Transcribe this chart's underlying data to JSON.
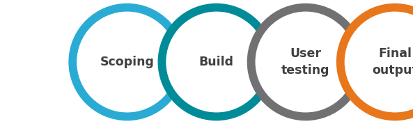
{
  "circles": [
    {
      "label": "Scoping",
      "color": "#29ABD4"
    },
    {
      "label": "Build",
      "color": "#008B99"
    },
    {
      "label": "User\ntesting",
      "color": "#717073"
    },
    {
      "label": "Final\noutput",
      "color": "#E8761A"
    }
  ],
  "linewidth": 8.5,
  "bg_color": "#ffffff",
  "text_color": "#404040",
  "font_size": 12.5,
  "font_weight": "bold"
}
